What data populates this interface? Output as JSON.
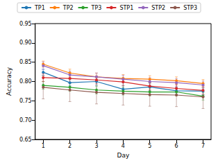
{
  "chart_data": {
    "type": "line",
    "x_label": "Day",
    "y_label": "Accuracy",
    "x": [
      1,
      2,
      3,
      4,
      5,
      6,
      7
    ],
    "xlim": [
      0.7,
      7.3
    ],
    "xticks": [
      1,
      2,
      3,
      4,
      5,
      6,
      7
    ],
    "ylim": [
      0.65,
      0.95
    ],
    "yticks": [
      0.65,
      {
        "value": 0.7,
        "label": "0.70"
      },
      0.75,
      {
        "value": 0.8,
        "label": "0.80"
      },
      0.85,
      {
        "value": 0.9,
        "label": "0.90"
      },
      0.95
    ],
    "grid": false,
    "legend": "top",
    "marker": "circle",
    "series": [
      {
        "name": "TP1",
        "color": "#1f77b4",
        "values": [
          0.824,
          0.797,
          0.8,
          0.78,
          0.786,
          0.776,
          0.775
        ],
        "errors": [
          0.008,
          0.008,
          0.01,
          0.01,
          0.01,
          0.009,
          0.009
        ]
      },
      {
        "name": "TP2",
        "color": "#ff7f0e",
        "values": [
          0.845,
          0.822,
          0.812,
          0.808,
          0.806,
          0.802,
          0.795
        ],
        "errors": [
          0.008,
          0.01,
          0.01,
          0.01,
          0.009,
          0.01,
          0.01
        ]
      },
      {
        "name": "TP3",
        "color": "#2ca02c",
        "values": [
          0.79,
          0.785,
          0.778,
          0.775,
          0.773,
          0.773,
          0.762
        ],
        "errors": [
          0.01,
          0.01,
          0.01,
          0.01,
          0.01,
          0.01,
          0.01
        ]
      },
      {
        "name": "STP1",
        "color": "#d62728",
        "values": [
          0.81,
          0.808,
          0.804,
          0.799,
          0.788,
          0.782,
          0.777
        ],
        "errors": [
          0.01,
          0.01,
          0.01,
          0.01,
          0.01,
          0.01,
          0.01
        ]
      },
      {
        "name": "STP2",
        "color": "#9467bd",
        "values": [
          0.841,
          0.817,
          0.812,
          0.806,
          0.8,
          0.797,
          0.791
        ],
        "errors": [
          0.01,
          0.01,
          0.01,
          0.01,
          0.01,
          0.01,
          0.01
        ]
      },
      {
        "name": "STP3",
        "color": "#8c564b",
        "values": [
          0.785,
          0.778,
          0.772,
          0.769,
          0.766,
          0.765,
          0.76
        ],
        "errors": [
          0.03,
          0.03,
          0.03,
          0.03,
          0.03,
          0.03,
          0.03
        ]
      }
    ]
  }
}
